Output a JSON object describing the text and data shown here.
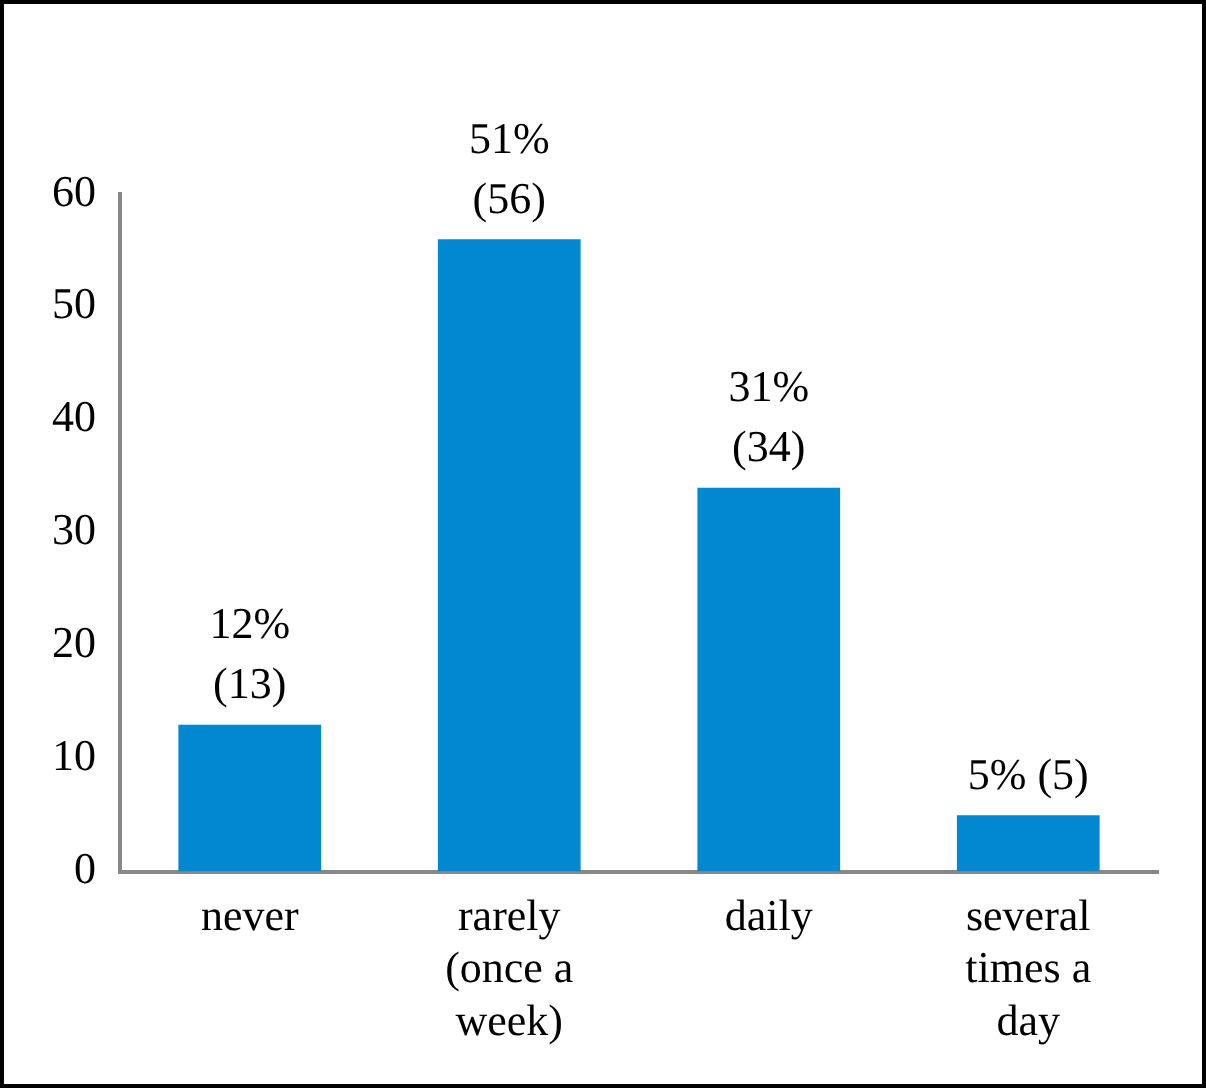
{
  "chart_data": {
    "type": "bar",
    "categories": [
      "never",
      "rarely (once a week)",
      "daily",
      "several times a day"
    ],
    "values": [
      13,
      56,
      34,
      5
    ],
    "color": "#0288d1",
    "value_labels": [
      "12%\n(13)",
      "51%\n(56)",
      "31%\n(34)",
      "5% (5)"
    ],
    "ylim": [
      0,
      60
    ],
    "yticks": [
      0,
      10,
      20,
      30,
      40,
      50,
      60
    ],
    "grid": false,
    "legend": false
  }
}
